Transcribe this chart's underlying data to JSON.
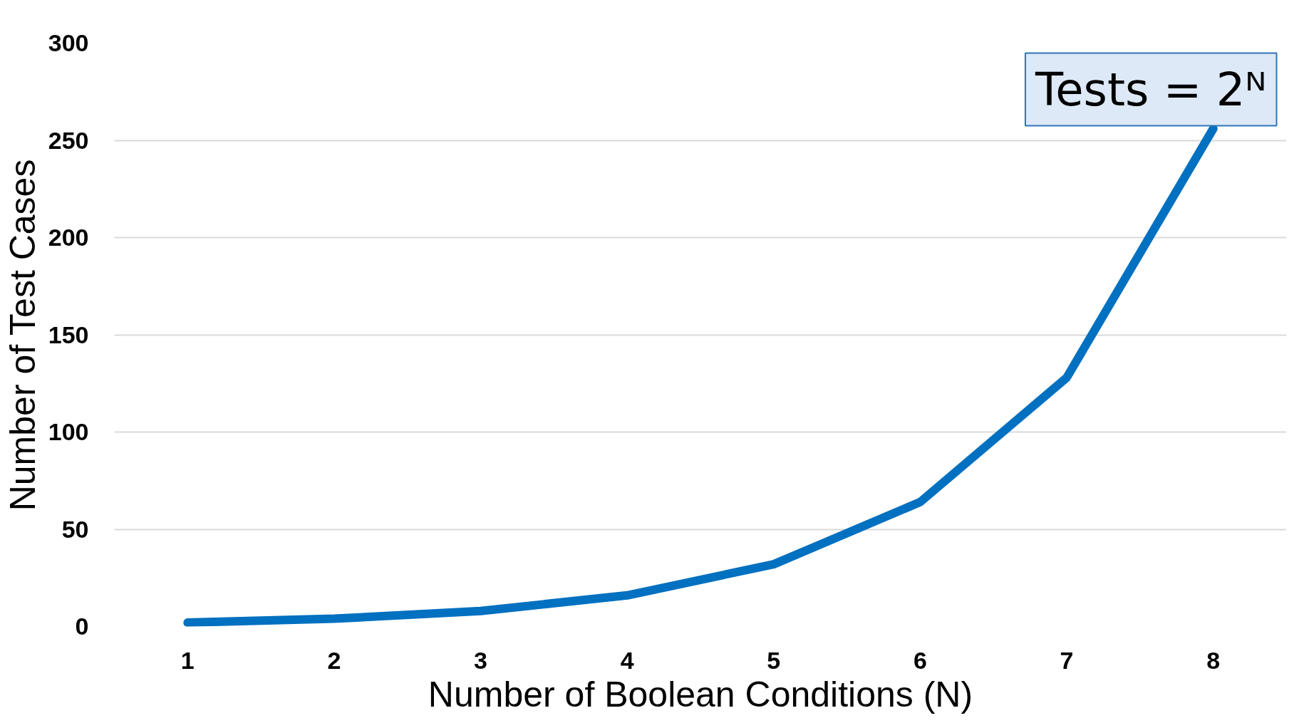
{
  "chart_data": {
    "type": "line",
    "xlabel": "Number of Boolean Conditions (N)",
    "ylabel": "Number of Test Cases",
    "categories": [
      "1",
      "2",
      "3",
      "4",
      "5",
      "6",
      "7",
      "8"
    ],
    "series": [
      {
        "color": "#0070c0",
        "values": [
          2,
          4,
          8,
          16,
          32,
          64,
          128,
          256
        ]
      }
    ],
    "ylim": [
      0,
      300
    ],
    "yticks": [
      0,
      50,
      100,
      150,
      200,
      250,
      300
    ],
    "grid": "y",
    "marker": "none",
    "line_style": "solid",
    "annotations": [
      "Tests = 2ᴺ"
    ]
  }
}
